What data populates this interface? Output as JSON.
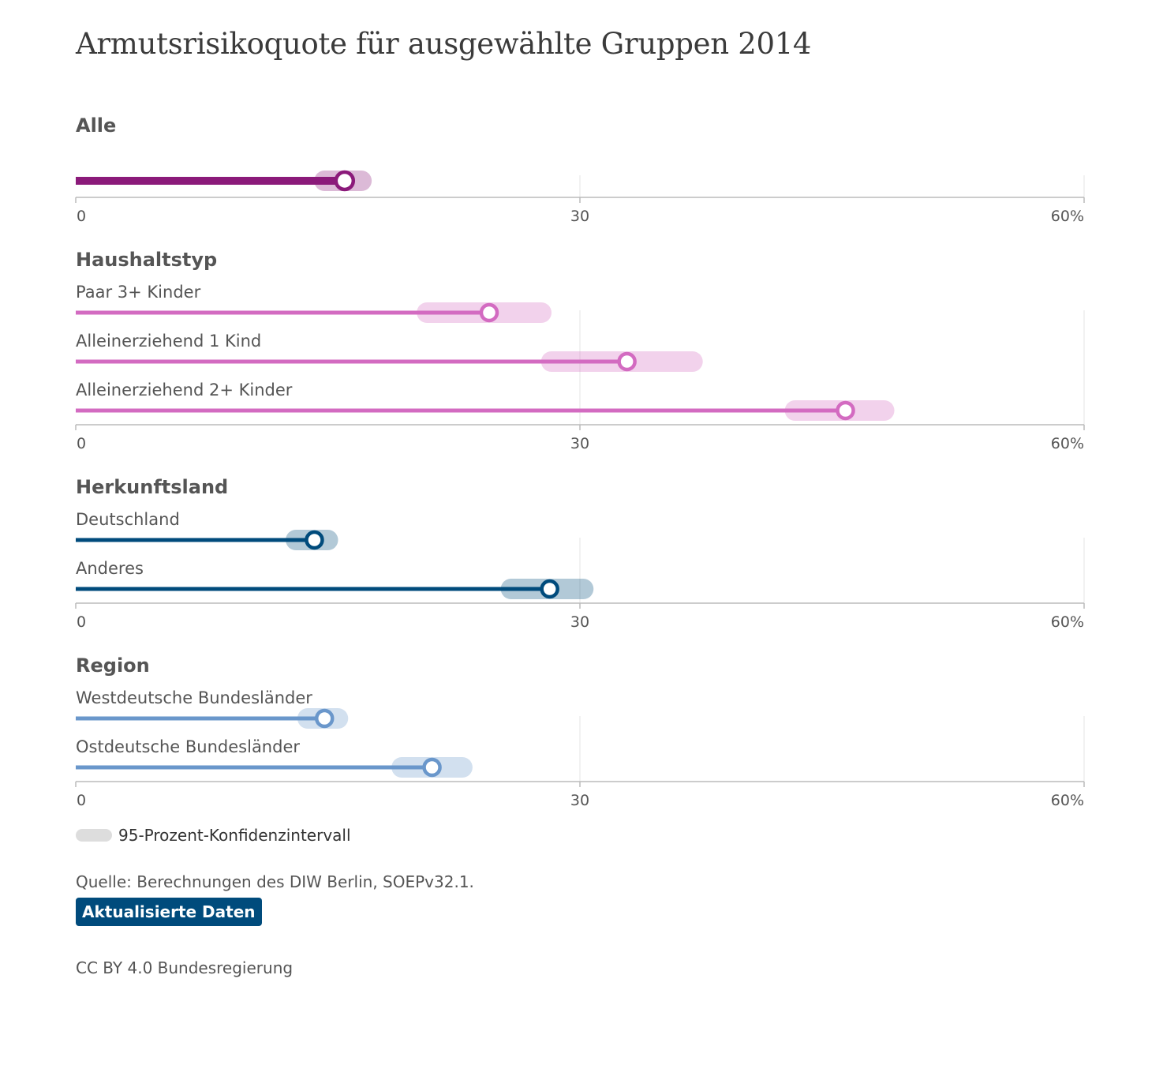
{
  "chart_data": {
    "type": "dot-range",
    "title": "Armutsrisikoquote für ausgewählte Gruppen 2014",
    "unit": "%",
    "xlim": [
      0,
      60
    ],
    "ticks": [
      "0",
      "30",
      "60%"
    ],
    "tick_values": [
      0,
      30,
      60
    ],
    "colors": {
      "alle": "#8b1a7a",
      "haushaltstyp": "#d36bc1",
      "herkunftsland": "#004b7c",
      "region": "#6a97cb"
    },
    "groups": [
      {
        "title": "Alle",
        "color_key": "alle",
        "rows": [
          {
            "label": "",
            "value": 16,
            "ci": [
              14.8,
              17.0
            ]
          }
        ]
      },
      {
        "title": "Haushaltstyp",
        "color_key": "haushaltstyp",
        "rows": [
          {
            "label": "Paar 3+ Kinder",
            "value": 24.6,
            "ci": [
              20.9,
              27.7
            ]
          },
          {
            "label": "Alleinerziehend 1 Kind",
            "value": 32.8,
            "ci": [
              28.3,
              36.7
            ]
          },
          {
            "label": "Alleinerziehend 2+ Kinder",
            "value": 45.8,
            "ci": [
              42.8,
              48.1
            ]
          }
        ]
      },
      {
        "title": "Herkunftsland",
        "color_key": "herkunftsland",
        "rows": [
          {
            "label": "Deutschland",
            "value": 14.2,
            "ci": [
              13.1,
              15.0
            ]
          },
          {
            "label": "Anderes",
            "value": 28.2,
            "ci": [
              25.9,
              30.2
            ]
          }
        ]
      },
      {
        "title": "Region",
        "color_key": "region",
        "rows": [
          {
            "label": "Westdeutsche Bundesländer",
            "value": 14.8,
            "ci": [
              13.8,
              15.6
            ]
          },
          {
            "label": "Ostdeutsche Bundesländer",
            "value": 21.2,
            "ci": [
              19.4,
              23.0
            ]
          }
        ]
      }
    ],
    "legend": {
      "ci_label": "95-Prozent-Konfidenzintervall",
      "ci_color": "#dddddd"
    }
  },
  "footer": {
    "source": "Quelle: Berechnungen des DIW Berlin, SOEPv32.1.",
    "update_button": "Aktualisierte Daten",
    "license": "CC BY 4.0 Bundesregierung"
  }
}
